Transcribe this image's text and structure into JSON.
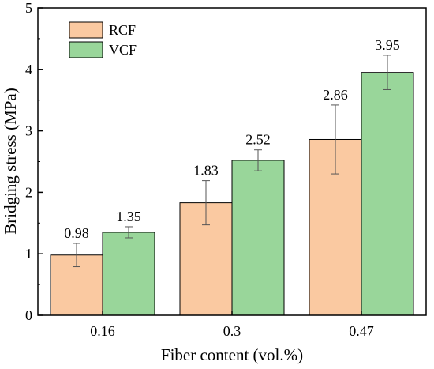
{
  "chart_data": {
    "type": "bar",
    "xlabel": "Fiber content (vol.%)",
    "ylabel": "Bridging stress (MPa)",
    "categories": [
      "0.16",
      "0.3",
      "0.47"
    ],
    "ylim": [
      0,
      5
    ],
    "yticks": [
      "0",
      "1",
      "2",
      "3",
      "4",
      "5"
    ],
    "grid": false,
    "legend_position": "top-left",
    "series": [
      {
        "name": "RCF",
        "color": "#fac9a1",
        "values": [
          0.98,
          1.83,
          2.86
        ],
        "value_labels": [
          "0.98",
          "1.83",
          "2.86"
        ],
        "error": [
          0.19,
          0.36,
          0.56
        ]
      },
      {
        "name": "VCF",
        "color": "#99d69a",
        "values": [
          1.35,
          2.52,
          3.95
        ],
        "value_labels": [
          "1.35",
          "2.52",
          "3.95"
        ],
        "error": [
          0.09,
          0.17,
          0.28
        ]
      }
    ]
  }
}
